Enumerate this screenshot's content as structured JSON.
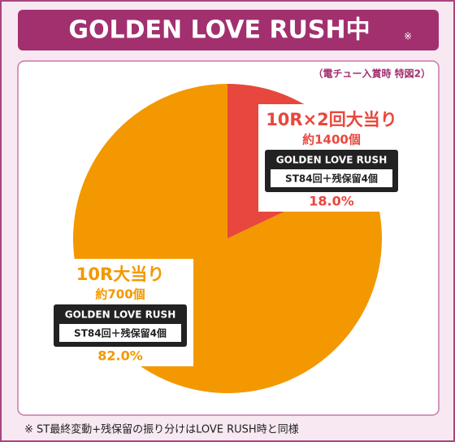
{
  "chart_data": {
    "type": "pie",
    "title": "GOLDEN LOVE RUSH中",
    "title_note": "※",
    "subtitle": "（電チュー入賞時 特図2）",
    "categories": [
      "10R×2回大当り",
      "10R大当り"
    ],
    "values": [
      18,
      82
    ],
    "value_labels": [
      "18.0%",
      "82.0%"
    ],
    "colors": [
      "#e8473d",
      "#f39800"
    ],
    "payouts": [
      "約1400個",
      "約700個"
    ],
    "modes": [
      "GOLDEN LOVE RUSH",
      "GOLDEN LOVE RUSH"
    ],
    "st_texts": [
      "ST84回＋残保留4個",
      "ST84回＋残保留4個"
    ],
    "footnote": "※ ST最終変動+残保留の振り分けはLOVE RUSH時と同様"
  }
}
